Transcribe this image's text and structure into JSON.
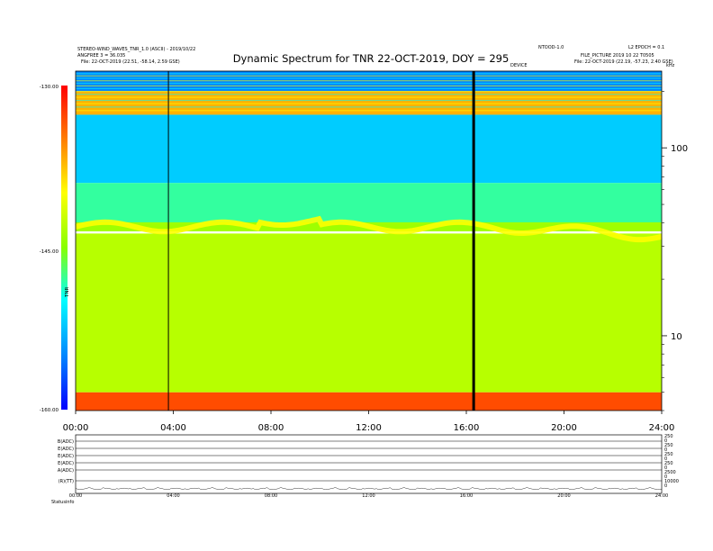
{
  "header": {
    "left_line1": "STEREO-WIND_WAVES_TNR_1.0 (ASCII) - 2019/10/22",
    "left_line2": "ANGFREE 3 = 36.035",
    "left_line3": "File: 22-OCT-2019 (22.51, -58.14, 2.59 GSE)",
    "right_line1": "NTOOD-1.0",
    "right_line2": "L2 EPOCH = 0.1",
    "right_line3": "FILE_PICTURE 2019 10 22 T0505",
    "right_line4": "File: 22-OCT-2019 (22.19, -57.23, 2.40 GSE)",
    "marker_label": "DEVICE",
    "khz_label": "kHz"
  },
  "chart_data": {
    "type": "heatmap",
    "title": "Dynamic Spectrum for TNR 22-OCT-2019, DOY = 295",
    "x_ticks": [
      "00:00",
      "04:00",
      "08:00",
      "12:00",
      "16:00",
      "20:00",
      "24:00"
    ],
    "x_range_hours": [
      0,
      24
    ],
    "y_axis_scale": "log",
    "y_ticks_right": [
      "100",
      "10"
    ],
    "y_range_khz": [
      4,
      256
    ],
    "colorbar_ticks": [
      "-130.00",
      "-145.00",
      "-160.00"
    ],
    "colorbar_range": [
      -160,
      -130
    ],
    "colorbar_label": "TNR",
    "vertical_markers_hours": [
      {
        "hour": 3.8,
        "weight": "thin"
      },
      {
        "hour": 16.3,
        "weight": "thick"
      }
    ],
    "bands": [
      {
        "description": "top",
        "freq_khz_from": 256,
        "freq_khz_to": 200,
        "value_dbm": -135
      },
      {
        "description": "upper blue stripe",
        "freq_khz_from": 200,
        "freq_khz_to": 150,
        "value_dbm": -153
      },
      {
        "description": "cyan region",
        "freq_khz_from": 150,
        "freq_khz_to": 65,
        "value_dbm": -138
      },
      {
        "description": "green transition",
        "freq_khz_from": 65,
        "freq_khz_to": 38,
        "value_dbm": -142
      },
      {
        "description": "orange emission line",
        "freq_khz": 38,
        "value_dbm": -146
      },
      {
        "description": "yellow background",
        "freq_khz_from": 35,
        "freq_khz_to": 5,
        "value_dbm": -147
      },
      {
        "description": "low frequency red",
        "freq_khz_from": 5,
        "freq_khz_to": 4,
        "value_dbm": -157
      }
    ]
  },
  "lower_panel": {
    "row_labels": [
      "B(ADC)",
      "E(ADC)",
      "E(ADC)",
      "E(ADC)",
      "A(ADC)",
      "(R)(TT)"
    ],
    "right_labels": [
      "250",
      "0",
      "250",
      "0",
      "250",
      "0",
      "250",
      "0",
      "2500",
      "0",
      "10000",
      "0"
    ],
    "x_ticks": [
      "00:00",
      "04:00",
      "08:00",
      "12:00",
      "16:00",
      "20:00",
      "24:00"
    ],
    "footer_left": "Status:",
    "footer_value": "info"
  }
}
